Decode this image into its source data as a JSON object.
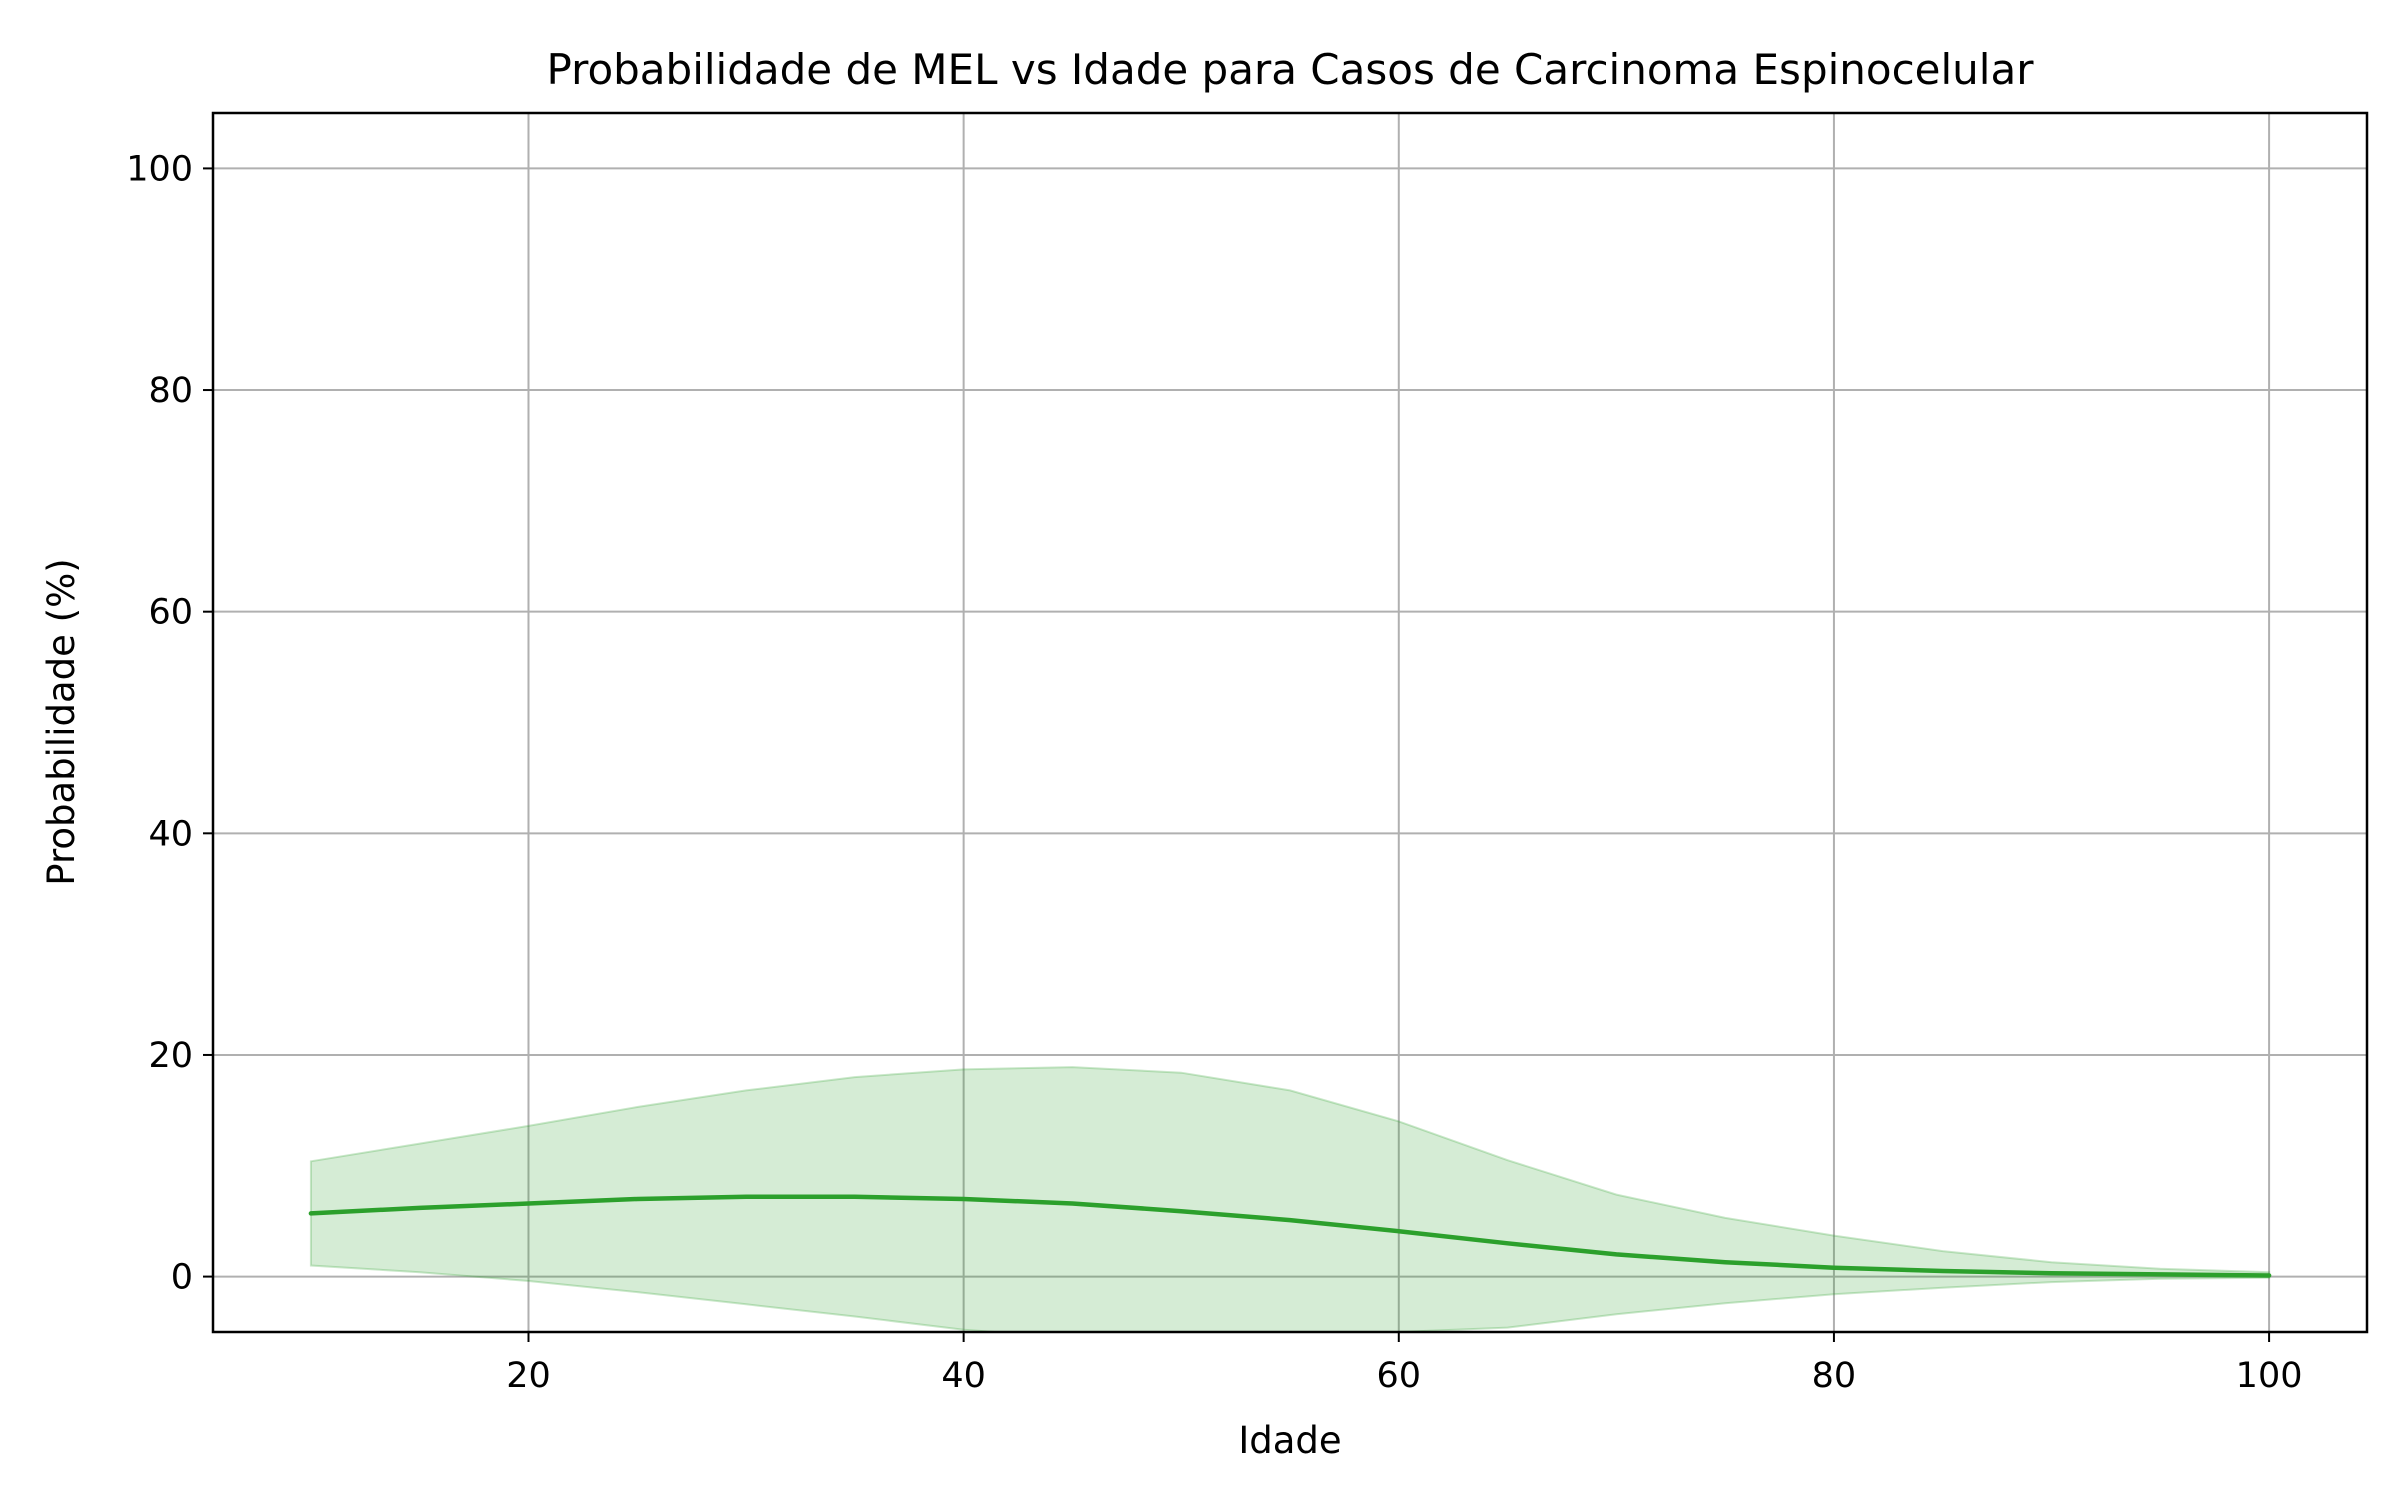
{
  "chart_data": {
    "type": "line",
    "title": "Probabilidade de MEL vs Idade para Casos de Carcinoma Espinocelular",
    "xlabel": "Idade",
    "ylabel": "Probabilidade (%)",
    "xlim": [
      5.5,
      104.5
    ],
    "ylim": [
      -5,
      105
    ],
    "xticks": [
      20,
      40,
      60,
      80,
      100
    ],
    "yticks": [
      0,
      20,
      40,
      60,
      80,
      100
    ],
    "grid": true,
    "colors": {
      "line": "#2ca02c",
      "band": "#2ca02c",
      "grid": "#b0b0b0"
    },
    "series": [
      {
        "x": [
          10,
          15,
          20,
          25,
          30,
          35,
          40,
          45,
          50,
          55,
          60,
          65,
          70,
          75,
          80,
          85,
          90,
          95,
          100
        ],
        "y": [
          5.7,
          6.2,
          6.6,
          7.0,
          7.2,
          7.2,
          7.0,
          6.6,
          5.9,
          5.1,
          4.1,
          3.0,
          2.0,
          1.3,
          0.8,
          0.5,
          0.3,
          0.2,
          0.1
        ],
        "lower": [
          1.0,
          0.4,
          -0.4,
          -1.4,
          -2.5,
          -3.6,
          -4.8,
          -5.5,
          -5.6,
          -5.4,
          -5.0,
          -4.6,
          -3.4,
          -2.4,
          -1.6,
          -1.0,
          -0.5,
          -0.2,
          -0.1
        ],
        "upper": [
          10.4,
          12.0,
          13.6,
          15.3,
          16.8,
          18.0,
          18.7,
          18.9,
          18.4,
          16.8,
          14.0,
          10.5,
          7.4,
          5.3,
          3.7,
          2.3,
          1.3,
          0.7,
          0.4
        ]
      }
    ]
  }
}
